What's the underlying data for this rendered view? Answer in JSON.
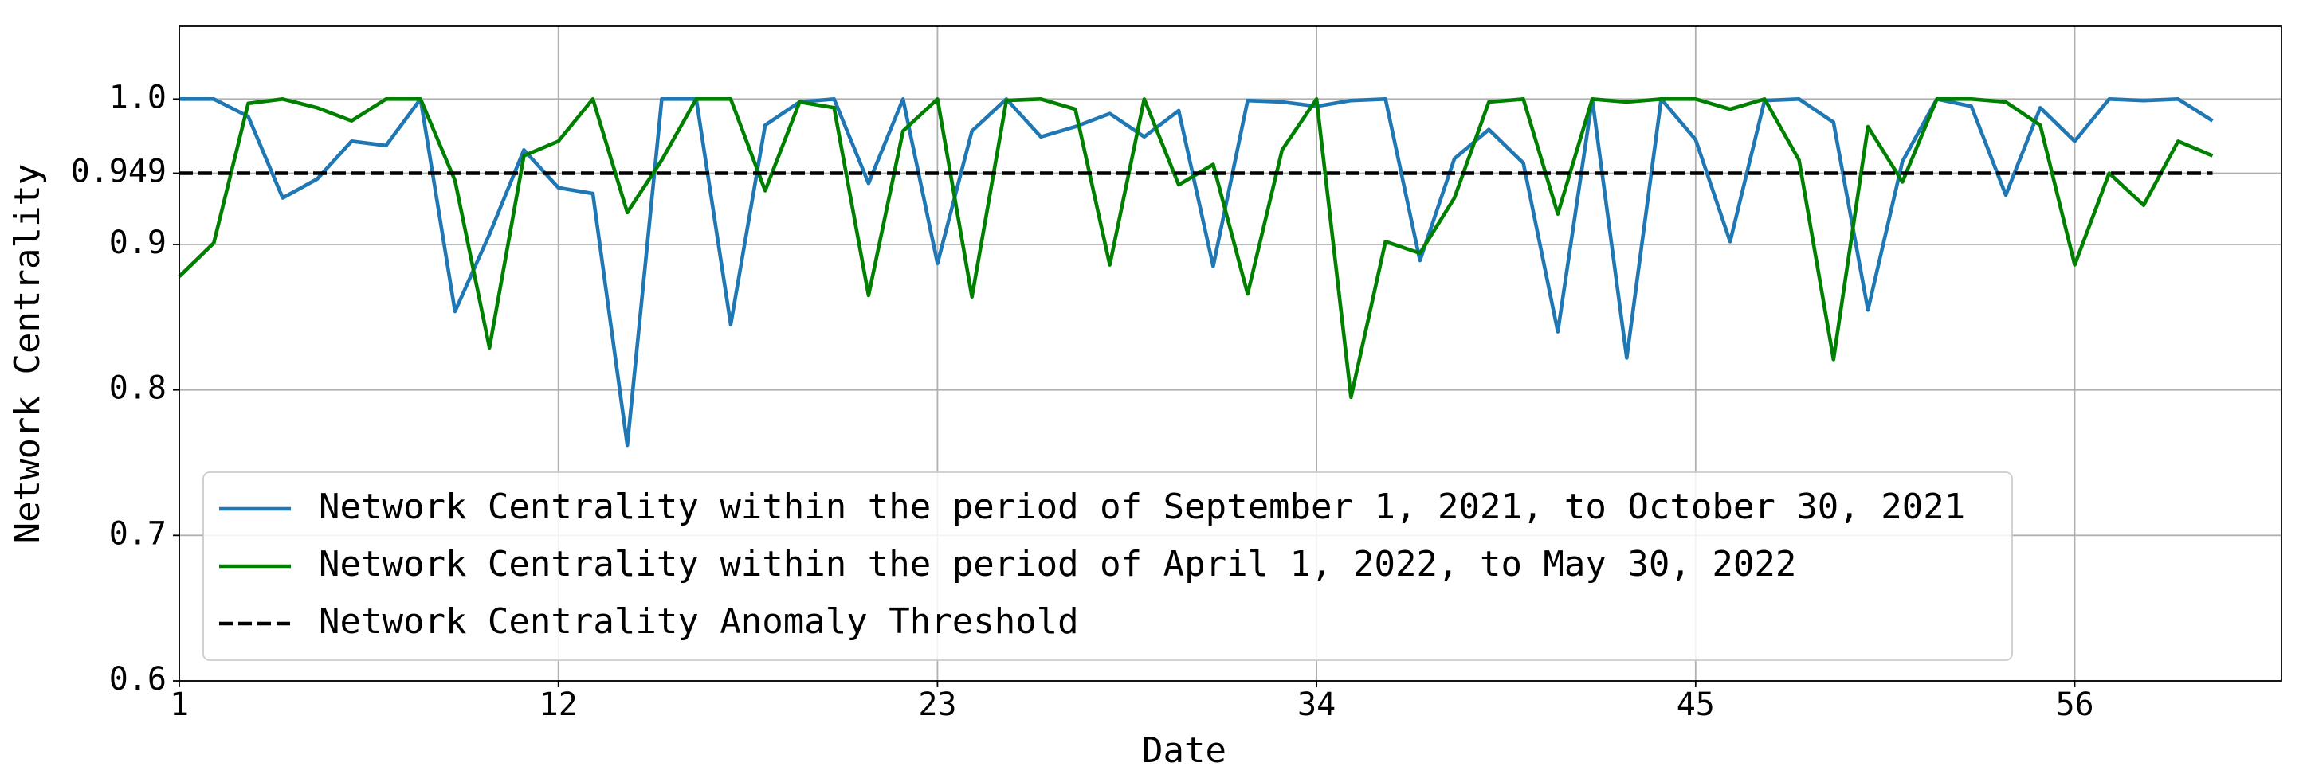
{
  "chart_data": {
    "type": "line",
    "xlabel": "Date",
    "ylabel": "Network Centrality",
    "x": [
      1,
      2,
      3,
      4,
      5,
      6,
      7,
      8,
      9,
      10,
      11,
      12,
      13,
      14,
      15,
      16,
      17,
      18,
      19,
      20,
      21,
      22,
      23,
      24,
      25,
      26,
      27,
      28,
      29,
      30,
      31,
      32,
      33,
      34,
      35,
      36,
      37,
      38,
      39,
      40,
      41,
      42,
      43,
      44,
      45,
      46,
      47,
      48,
      49,
      50,
      51,
      52,
      53,
      54,
      55,
      56,
      57,
      58,
      59,
      60
    ],
    "series": [
      {
        "name": "Network Centrality within the period of September 1, 2021, to October 30, 2021",
        "color": "#1f77b4",
        "values": [
          1.0,
          1.0,
          0.988,
          0.932,
          0.945,
          0.971,
          0.968,
          1.0,
          0.854,
          0.907,
          0.965,
          0.939,
          0.935,
          0.762,
          1.0,
          1.0,
          0.845,
          0.982,
          0.998,
          1.0,
          0.942,
          1.0,
          0.887,
          0.978,
          1.0,
          0.974,
          0.981,
          0.99,
          0.974,
          0.992,
          0.885,
          0.999,
          0.998,
          0.995,
          0.999,
          1.0,
          0.889,
          0.959,
          0.979,
          0.956,
          0.84,
          1.0,
          0.822,
          1.0,
          0.972,
          0.902,
          0.999,
          1.0,
          0.984,
          0.855,
          0.957,
          1.0,
          0.995,
          0.934,
          0.994,
          0.971,
          1.0,
          0.999,
          1.0,
          0.985
        ]
      },
      {
        "name": "Network Centrality within the period of April 1, 2022, to May 30, 2022",
        "color": "#008000",
        "values": [
          0.878,
          0.901,
          0.997,
          1.0,
          0.994,
          0.985,
          1.0,
          1.0,
          0.944,
          0.829,
          0.961,
          0.971,
          1.0,
          0.922,
          0.958,
          1.0,
          1.0,
          0.937,
          0.998,
          0.994,
          0.865,
          0.978,
          1.0,
          0.864,
          0.999,
          1.0,
          0.993,
          0.886,
          1.0,
          0.941,
          0.955,
          0.866,
          0.965,
          1.0,
          0.795,
          0.902,
          0.894,
          0.932,
          0.998,
          1.0,
          0.921,
          1.0,
          0.998,
          1.0,
          1.0,
          0.993,
          1.0,
          0.958,
          0.821,
          0.981,
          0.943,
          1.0,
          1.0,
          0.998,
          0.982,
          0.886,
          0.949,
          0.927,
          0.971,
          0.961
        ]
      },
      {
        "name": "Network Centrality Anomaly Threshold",
        "color": "#000000",
        "value": 0.949,
        "dashed": true
      }
    ],
    "xlim": [
      1,
      62
    ],
    "xticks": [
      1,
      12,
      23,
      34,
      45,
      56
    ],
    "ylim": [
      0.6,
      1.05
    ],
    "yticks": [
      0.6,
      0.7,
      0.8,
      0.9,
      0.949,
      {
        "value": 1,
        "label": "1.0"
      }
    ],
    "grid": true,
    "legend_loc": "lower left"
  }
}
